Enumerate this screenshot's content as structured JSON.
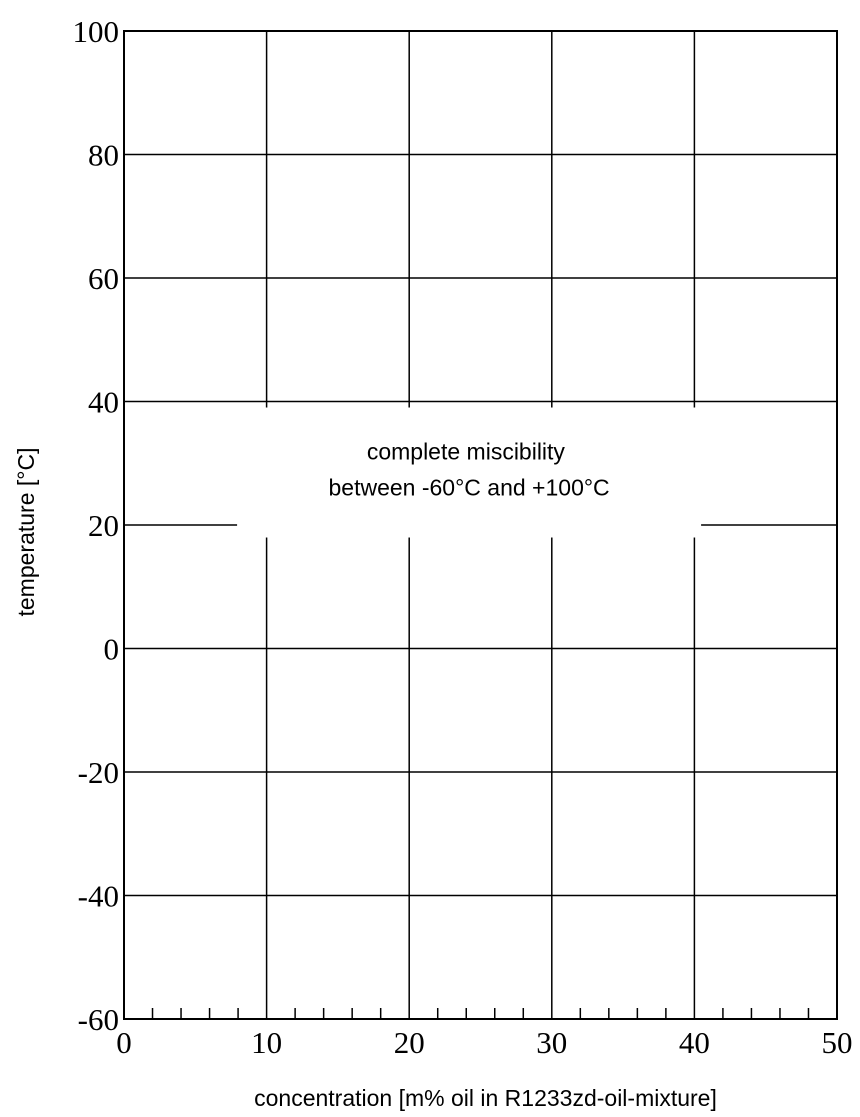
{
  "chart_data": {
    "type": "line",
    "title": "",
    "xlabel": "concentration [m% oil in R1233zd-oil-mixture]",
    "ylabel": "temperature [°C]",
    "xlim": [
      0,
      50
    ],
    "ylim": [
      -60,
      100
    ],
    "x_ticks": [
      0,
      10,
      20,
      30,
      40,
      50
    ],
    "x_tick_labels": [
      "0",
      "10",
      "20",
      "30",
      "40",
      "50"
    ],
    "y_ticks": [
      100,
      80,
      60,
      40,
      20,
      0,
      -20,
      -40,
      -60
    ],
    "y_tick_labels": [
      "100",
      "80",
      "60",
      "40",
      "20",
      "0",
      "-20",
      "-40",
      "-60"
    ],
    "x_minor_step": 2,
    "grid": true,
    "series": [],
    "annotations": [
      {
        "lines": [
          "complete miscibility",
          "between -60°C and +100°C"
        ],
        "x": 24.2,
        "y": 28.5
      }
    ]
  }
}
